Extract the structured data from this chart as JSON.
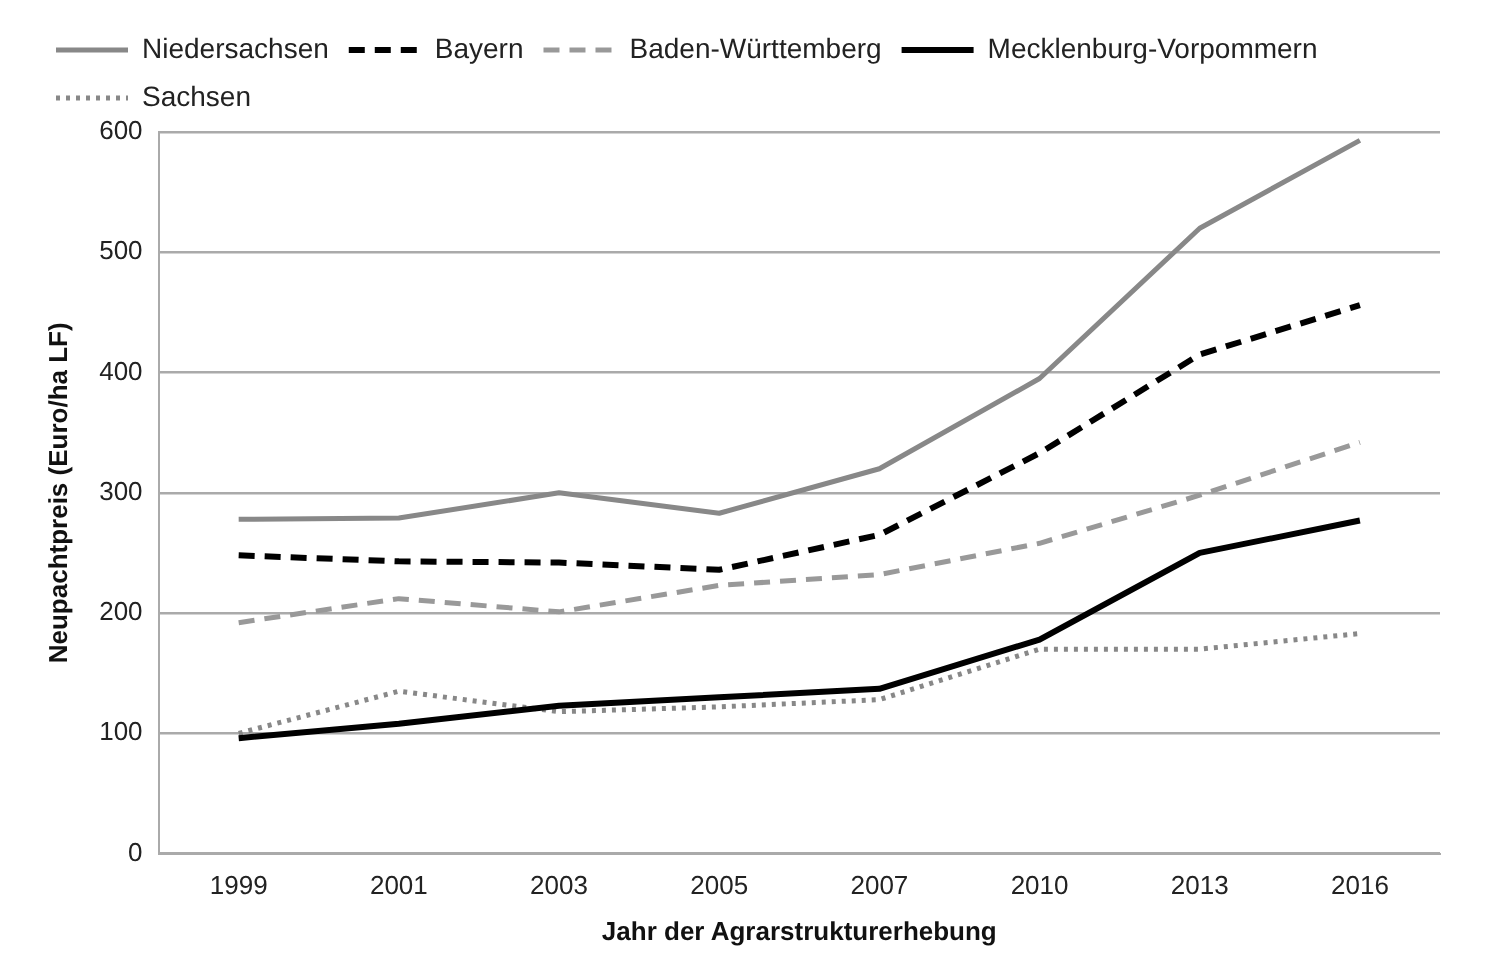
{
  "chart_data": {
    "type": "line",
    "xlabel": "Jahr der Agrarstrukturerhebung",
    "ylabel": "Neupachtpreis (Euro/ha LF)",
    "categories": [
      "1999",
      "2001",
      "2003",
      "2005",
      "2007",
      "2010",
      "2013",
      "2016"
    ],
    "series": [
      {
        "name": "Niedersachsen",
        "color": "#888888",
        "line_style": "solid",
        "values": [
          278,
          279,
          300,
          283,
          320,
          395,
          520,
          593
        ]
      },
      {
        "name": "Bayern",
        "color": "#000000",
        "line_style": "dashed",
        "values": [
          248,
          243,
          242,
          236,
          265,
          333,
          415,
          456
        ]
      },
      {
        "name": "Baden-Württemberg",
        "color": "#999999",
        "line_style": "dashed",
        "values": [
          192,
          212,
          201,
          223,
          232,
          258,
          298,
          342
        ]
      },
      {
        "name": "Mecklenburg-Vorpommern",
        "color": "#000000",
        "line_style": "solid",
        "values": [
          96,
          108,
          123,
          130,
          137,
          178,
          250,
          277
        ]
      },
      {
        "name": "Sachsen",
        "color": "#888888",
        "line_style": "dotted",
        "values": [
          100,
          135,
          118,
          122,
          128,
          170,
          170,
          183
        ]
      }
    ],
    "ylim": [
      0,
      600
    ],
    "yticks": [
      0,
      100,
      200,
      300,
      400,
      500,
      600
    ],
    "grid": "y",
    "legend": "top",
    "marker": "none"
  }
}
